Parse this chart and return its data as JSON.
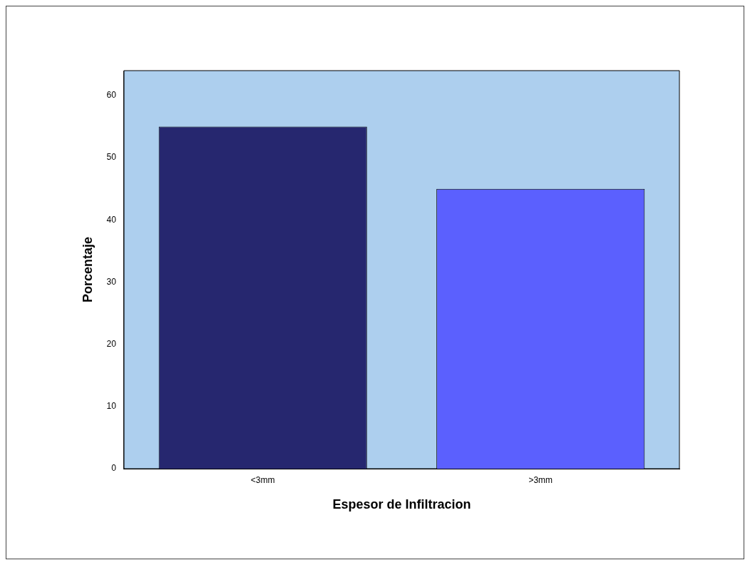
{
  "chart_data": {
    "type": "bar",
    "xlabel": "Espesor de Infiltracion",
    "ylabel": "Porcentaje",
    "categories": [
      "<3mm",
      ">3mm"
    ],
    "values": [
      55,
      45
    ],
    "colors": [
      "#26276f",
      "#5b60fe"
    ],
    "ylim": [
      0,
      64
    ],
    "yticks": [
      0,
      10,
      20,
      30,
      40,
      50,
      60
    ],
    "grid": false,
    "legend": false
  }
}
